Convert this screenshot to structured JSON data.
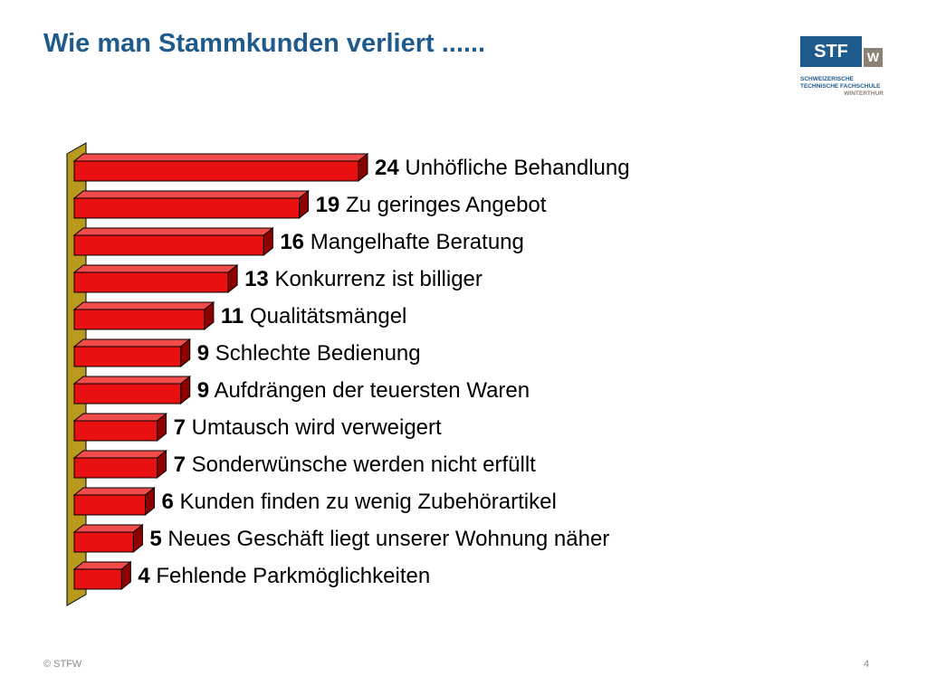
{
  "slide": {
    "title": "Wie man Stammkunden verliert ......",
    "footer_copyright": "© STFW",
    "page_number": "4"
  },
  "logo": {
    "main_text": "STF",
    "w_text": "W",
    "line1": "SCHWEIZERISCHE",
    "line2": "TECHNISCHE FACHSCHULE",
    "line3": "WINTERTHUR",
    "primary_color": "#1f5a8c",
    "secondary_color": "#8c8174"
  },
  "chart_data": {
    "type": "bar",
    "orientation": "horizontal",
    "style": "3d",
    "bar_color": "#e81010",
    "wall_color": "#b89a1e",
    "grid": false,
    "legend": "none",
    "xlim": [
      0,
      24
    ],
    "items": [
      {
        "value": 24,
        "label": "Unhöfliche Behandlung"
      },
      {
        "value": 19,
        "label": "Zu geringes Angebot"
      },
      {
        "value": 16,
        "label": "Mangelhafte Beratung"
      },
      {
        "value": 13,
        "label": "Konkurrenz ist billiger"
      },
      {
        "value": 11,
        "label": "Qualitätsmängel"
      },
      {
        "value": 9,
        "label": "Schlechte Bedienung"
      },
      {
        "value": 9,
        "label": "Aufdrängen der teuersten Waren"
      },
      {
        "value": 7,
        "label": "Umtausch wird verweigert"
      },
      {
        "value": 7,
        "label": "Sonderwünsche werden nicht erfüllt"
      },
      {
        "value": 6,
        "label": "Kunden finden zu wenig Zubehörartikel"
      },
      {
        "value": 5,
        "label": "Neues Geschäft liegt unserer Wohnung näher"
      },
      {
        "value": 4,
        "label": "Fehlende Parkmöglichkeiten"
      }
    ]
  }
}
